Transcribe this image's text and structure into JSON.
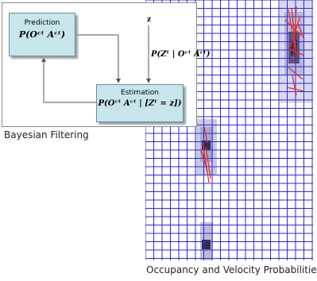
{
  "bayesian_diagram": {
    "prediction": {
      "title": "Prediction",
      "formula": "P(Oᶜᵗ Aᶜᵗ)"
    },
    "estimation": {
      "title": "Estimation",
      "formula": "P(Oᶜᵗ Aᶜᵗ | [Zᵗ = z])"
    },
    "observation": {
      "label": "z",
      "formula": "P(Zᵗ | Oᶜᵗ Aᶜᵗ)"
    },
    "caption": "Bayesian Filtering"
  },
  "occupancy_grid": {
    "caption": "Occupancy and Velocity Probabilities",
    "grid_color": "#2a2ad8",
    "velocity_color": "#e03030",
    "occupied_color": "#30304a"
  }
}
